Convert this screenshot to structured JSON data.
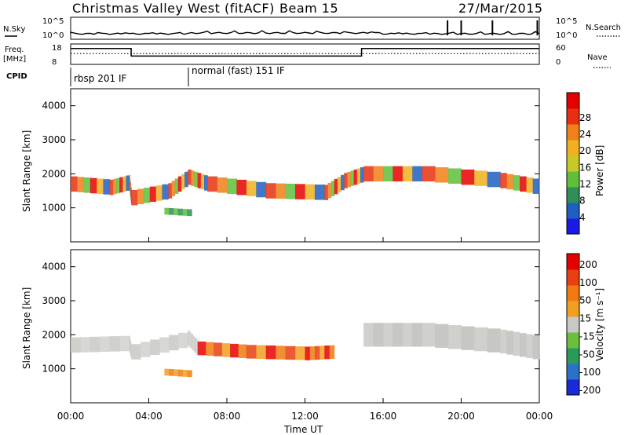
{
  "header": {
    "station": "Christmas Valley West (fitACF)",
    "beam": "Beam 15",
    "date": "27/Mar/2015"
  },
  "left_labels": {
    "nsky": "N.Sky",
    "freq_line1": "Freq.",
    "freq_line2": "[MHz]",
    "cpid": "CPID"
  },
  "right_labels": {
    "nsearch": "N.Search",
    "nave": "Nave"
  },
  "chart_data": [
    {
      "type": "line",
      "panel": "noise",
      "series": [
        {
          "name": "N.Sky",
          "values_note": "noise level near 10^0, slightly fluctuating"
        },
        {
          "name": "N.Search",
          "spikes_hours": [
            19.3,
            20.0,
            21.6,
            23.9
          ]
        }
      ],
      "ytick_labels": [
        "10^5",
        "10^0"
      ],
      "ylim": [
        0,
        5
      ]
    },
    {
      "type": "line",
      "panel": "frequency",
      "series": [
        {
          "name": "Freq.",
          "segments": [
            {
              "x": [
                0,
                3.1
              ],
              "y": 16.5
            },
            {
              "x": [
                3.1,
                14.9
              ],
              "y": 10.5
            },
            {
              "x": [
                14.9,
                24
              ],
              "y": 16.5
            }
          ]
        },
        {
          "name": "Nave",
          "y": 12.5
        }
      ],
      "left_ticks": [
        "18",
        "8"
      ],
      "right_ticks": [
        "60",
        "0"
      ]
    },
    {
      "type": "table",
      "panel": "cpid",
      "entries": [
        {
          "start_hour": 0,
          "label": "rbsp 201 IF"
        },
        {
          "start_hour": 6,
          "label": "normal (fast) 151 IF"
        }
      ]
    },
    {
      "type": "heatmap",
      "panel": "power",
      "ylabel": "Slant Range [km]",
      "ylim": [
        0,
        4500
      ],
      "yticks": [
        "1000",
        "2000",
        "3000",
        "4000"
      ],
      "colorbar_label": "Power [dB]",
      "colorbar_ticks": [
        "4",
        "8",
        "12",
        "16",
        "20",
        "24",
        "28"
      ],
      "colorbar_colors": [
        "#1a1ae6",
        "#1f5fbf",
        "#2e8f5a",
        "#5fbf3a",
        "#c8c82a",
        "#f0b020",
        "#f08018",
        "#e83010",
        "#e60000"
      ]
    },
    {
      "type": "heatmap",
      "panel": "velocity",
      "ylabel": "Slant Range [km]",
      "ylim": [
        0,
        4500
      ],
      "yticks": [
        "1000",
        "2000",
        "3000",
        "4000"
      ],
      "colorbar_label": "Velocity [m s⁻¹]",
      "colorbar_ticks": [
        "200",
        "100",
        "50",
        "15",
        "-15",
        "-50",
        "-100",
        "-200"
      ],
      "colorbar_colors": [
        "#1a2ad6",
        "#2a72c8",
        "#2a9a5a",
        "#6ac03a",
        "#c8c8c4",
        "#f0a020",
        "#f07a10",
        "#e84010",
        "#e60000"
      ]
    }
  ],
  "xaxis": {
    "label": "Time UT",
    "ticks": [
      "00:00",
      "04:00",
      "08:00",
      "12:00",
      "16:00",
      "20:00",
      "00:00"
    ]
  }
}
